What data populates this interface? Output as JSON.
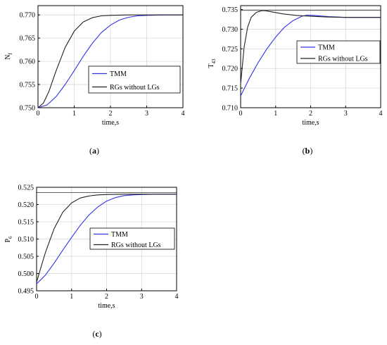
{
  "chart_data": [
    {
      "type": "line",
      "panel_label": "a",
      "xlabel": "time,s",
      "ylabel": "N",
      "ylabel_sub": "f",
      "xlim": [
        0,
        4
      ],
      "ylim": [
        0.75,
        0.772
      ],
      "xticks": [
        "0",
        "1",
        "2",
        "3",
        "4"
      ],
      "yticks": [
        "0.750",
        "0.755",
        "0.760",
        "0.765",
        "0.770"
      ],
      "grid": true,
      "legend_position": "center-right",
      "series": [
        {
          "name": "TMM",
          "color": "#3333e6",
          "x": [
            0,
            0.25,
            0.5,
            0.75,
            1.0,
            1.25,
            1.5,
            1.75,
            2.0,
            2.25,
            2.5,
            2.75,
            3.0,
            3.5,
            4.0
          ],
          "y": [
            0.75,
            0.7506,
            0.7524,
            0.755,
            0.758,
            0.7611,
            0.7639,
            0.7662,
            0.7678,
            0.7689,
            0.7695,
            0.7698,
            0.7699,
            0.77,
            0.77
          ]
        },
        {
          "name": "RGs without LGs",
          "color": "#222222",
          "x": [
            0,
            0.15,
            0.3,
            0.5,
            0.75,
            1.0,
            1.25,
            1.5,
            1.75,
            2.0,
            2.5,
            3.0,
            3.5,
            4.0
          ],
          "y": [
            0.75,
            0.751,
            0.7535,
            0.758,
            0.763,
            0.7665,
            0.7685,
            0.7694,
            0.7698,
            0.7699,
            0.77,
            0.77,
            0.77,
            0.77
          ]
        }
      ]
    },
    {
      "type": "line",
      "panel_label": "b",
      "xlabel": "time,s",
      "ylabel": "T",
      "ylabel_sub": "43",
      "xlim": [
        0,
        4
      ],
      "ylim": [
        0.71,
        0.736
      ],
      "xticks": [
        "0",
        "1",
        "2",
        "3",
        "4"
      ],
      "yticks": [
        "0.710",
        "0.715",
        "0.720",
        "0.725",
        "0.730",
        "0.735"
      ],
      "grid": true,
      "legend_position": "center-right",
      "reference_line": 0.7348,
      "series": [
        {
          "name": "TMM",
          "color": "#3333e6",
          "x": [
            0,
            0.25,
            0.5,
            0.75,
            1.0,
            1.25,
            1.5,
            1.75,
            1.9,
            2.1,
            2.5,
            3.0,
            3.5,
            4.0
          ],
          "y": [
            0.713,
            0.7175,
            0.7215,
            0.725,
            0.728,
            0.7305,
            0.7322,
            0.7333,
            0.7336,
            0.7335,
            0.7332,
            0.733,
            0.733,
            0.733
          ],
          "marker_x": [
            0,
            0.25,
            0.5,
            0.75,
            1.0,
            1.25,
            1.5,
            1.75,
            1.9,
            2.1,
            2.5,
            3.0,
            3.5,
            4.0
          ]
        },
        {
          "name": "RGs without LGs",
          "color": "#222222",
          "x": [
            0,
            0.1,
            0.2,
            0.3,
            0.45,
            0.6,
            0.7,
            0.9,
            1.2,
            1.6,
            2.0,
            2.5,
            3.0,
            4.0
          ],
          "y": [
            0.716,
            0.7255,
            0.7305,
            0.733,
            0.7343,
            0.7347,
            0.7347,
            0.7344,
            0.7339,
            0.7335,
            0.7333,
            0.7331,
            0.733,
            0.733
          ]
        }
      ]
    },
    {
      "type": "line",
      "panel_label": "c",
      "xlabel": "time,s",
      "ylabel": "P",
      "ylabel_sub": "6",
      "xlim": [
        0,
        4
      ],
      "ylim": [
        0.495,
        0.525
      ],
      "xticks": [
        "0",
        "1",
        "2",
        "3",
        "4"
      ],
      "yticks": [
        "0.495",
        "0.500",
        "0.505",
        "0.510",
        "0.515",
        "0.520",
        "0.525"
      ],
      "grid": true,
      "legend_position": "center-right",
      "reference_line": 0.5235,
      "series": [
        {
          "name": "TMM",
          "color": "#3333e6",
          "x": [
            0,
            0.25,
            0.5,
            0.75,
            1.0,
            1.25,
            1.5,
            1.75,
            2.0,
            2.25,
            2.5,
            2.75,
            3.0,
            3.5,
            4.0
          ],
          "y": [
            0.497,
            0.4995,
            0.503,
            0.5068,
            0.5105,
            0.514,
            0.517,
            0.5193,
            0.521,
            0.522,
            0.5226,
            0.5228,
            0.5229,
            0.523,
            0.523
          ]
        },
        {
          "name": "RGs without LGs",
          "color": "#222222",
          "x": [
            0,
            0.1,
            0.25,
            0.5,
            0.75,
            1.0,
            1.25,
            1.5,
            1.75,
            2.0,
            2.5,
            3.0,
            3.5,
            4.0
          ],
          "y": [
            0.4975,
            0.501,
            0.506,
            0.513,
            0.5178,
            0.5205,
            0.5219,
            0.5225,
            0.5228,
            0.5229,
            0.523,
            0.523,
            0.523,
            0.523
          ]
        }
      ]
    }
  ]
}
